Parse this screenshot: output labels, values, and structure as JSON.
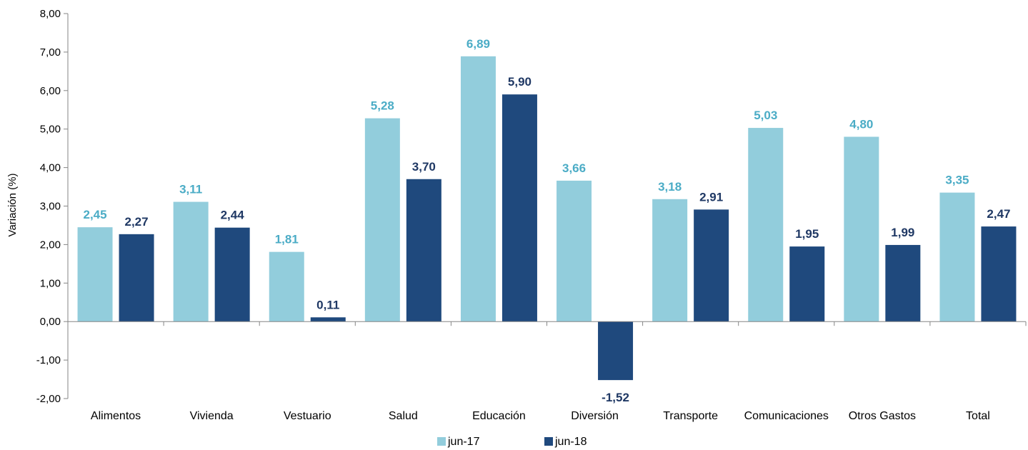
{
  "chart_data": {
    "type": "bar",
    "title": "",
    "xlabel": "",
    "ylabel": "Variación (%)",
    "ylim": [
      -2,
      8
    ],
    "yticks": [
      -2,
      -1,
      0,
      1,
      2,
      3,
      4,
      5,
      6,
      7,
      8
    ],
    "ytick_labels": [
      "-2,00",
      "-1,00",
      "0,00",
      "1,00",
      "2,00",
      "3,00",
      "4,00",
      "5,00",
      "6,00",
      "7,00",
      "8,00"
    ],
    "categories": [
      "Alimentos",
      "Vivienda",
      "Vestuario",
      "Salud",
      "Educación",
      "Diversión",
      "Transporte",
      "Comunicaciones",
      "Otros Gastos",
      "Total"
    ],
    "series": [
      {
        "name": "jun-17",
        "color": "#92CDDC",
        "label_color": "#4BACC6",
        "values": [
          2.45,
          3.11,
          1.81,
          5.28,
          6.89,
          3.66,
          3.18,
          5.03,
          4.8,
          3.35
        ],
        "labels": [
          "2,45",
          "3,11",
          "1,81",
          "5,28",
          "6,89",
          "3,66",
          "3,18",
          "5,03",
          "4,80",
          "3,35"
        ]
      },
      {
        "name": "jun-18",
        "color": "#1F497D",
        "label_color": "#1F3864",
        "values": [
          2.27,
          2.44,
          0.11,
          3.7,
          5.9,
          -1.52,
          2.91,
          1.95,
          1.99,
          2.47
        ],
        "labels": [
          "2,27",
          "2,44",
          "0,11",
          "3,70",
          "5,90",
          "-1,52",
          "2,91",
          "1,95",
          "1,99",
          "2,47"
        ]
      }
    ],
    "grid": false,
    "legend": "bottom-center"
  }
}
